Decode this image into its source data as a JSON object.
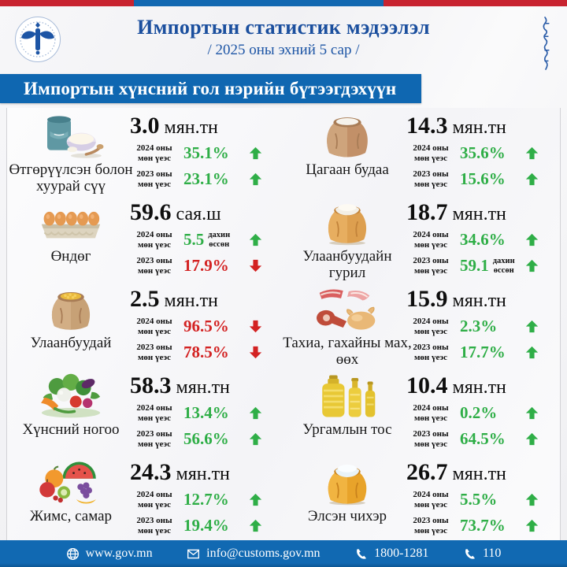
{
  "header": {
    "title": "Импортын статистик мэдээлэл",
    "subtitle": "/ 2025 оны эхний 5 сар /"
  },
  "banner": {
    "label": "Импортын хүнсний гол нэрийн бүтээгдэхүүн"
  },
  "colors": {
    "accent_blue": "#1268b1",
    "accent_red": "#c82330",
    "title_blue": "#1b4f9e",
    "up_green": "#2fae47",
    "down_red": "#d32222"
  },
  "products": [
    {
      "name": "Өтгөрүүлсэн болон хуурай сүү",
      "icon": "milk",
      "value": "3.0",
      "unit": "мян.тн",
      "stats": [
        {
          "period_year": "2024 оны",
          "period_rest": "мөн үеэс",
          "value": "35.1%",
          "suffix": "",
          "direction": "up"
        },
        {
          "period_year": "2023 оны",
          "period_rest": "мөн үеэс",
          "value": "23.1%",
          "suffix": "",
          "direction": "up"
        }
      ]
    },
    {
      "name": "Цагаан будаа",
      "icon": "rice-sack",
      "value": "14.3",
      "unit": "мян.тн",
      "stats": [
        {
          "period_year": "2024 оны",
          "period_rest": "мөн үеэс",
          "value": "35.6%",
          "suffix": "",
          "direction": "up"
        },
        {
          "period_year": "2023 оны",
          "period_rest": "мөн үеэс",
          "value": "15.6%",
          "suffix": "",
          "direction": "up"
        }
      ]
    },
    {
      "name": "Өндөг",
      "icon": "egg-tray",
      "value": "59.6",
      "unit": "сая.ш",
      "stats": [
        {
          "period_year": "2024 оны",
          "period_rest": "мөн үеэс",
          "value": "5.5",
          "suffix": "дахин өссөн",
          "direction": "up"
        },
        {
          "period_year": "2023 оны",
          "period_rest": "мөн үеэс",
          "value": "17.9%",
          "suffix": "",
          "direction": "down"
        }
      ]
    },
    {
      "name": "Улаанбуудайн гурил",
      "icon": "flour-sack",
      "value": "18.7",
      "unit": "мян.тн",
      "stats": [
        {
          "period_year": "2024 оны",
          "period_rest": "мөн үеэс",
          "value": "34.6%",
          "suffix": "",
          "direction": "up"
        },
        {
          "period_year": "2023 оны",
          "period_rest": "мөн үеэс",
          "value": "59.1",
          "suffix": "дахин өссөн",
          "direction": "up"
        }
      ]
    },
    {
      "name": "Улаанбуудай",
      "icon": "wheat-sack",
      "value": "2.5",
      "unit": "мян.тн",
      "stats": [
        {
          "period_year": "2024 оны",
          "period_rest": "мөн үеэс",
          "value": "96.5%",
          "suffix": "",
          "direction": "down"
        },
        {
          "period_year": "2023 оны",
          "period_rest": "мөн үеэс",
          "value": "78.5%",
          "suffix": "",
          "direction": "down"
        }
      ]
    },
    {
      "name": "Тахиа, гахайны мах, өөх",
      "icon": "meat",
      "value": "15.9",
      "unit": "мян.тн",
      "stats": [
        {
          "period_year": "2024 оны",
          "period_rest": "мөн үеэс",
          "value": "2.3%",
          "suffix": "",
          "direction": "up"
        },
        {
          "period_year": "2023 оны",
          "period_rest": "мөн үеэс",
          "value": "17.7%",
          "suffix": "",
          "direction": "up"
        }
      ]
    },
    {
      "name": "Хүнсний ногоо",
      "icon": "vegetables",
      "value": "58.3",
      "unit": "мян.тн",
      "stats": [
        {
          "period_year": "2024 оны",
          "period_rest": "мөн үеэс",
          "value": "13.4%",
          "suffix": "",
          "direction": "up"
        },
        {
          "period_year": "2023 оны",
          "period_rest": "мөн үеэс",
          "value": "56.6%",
          "suffix": "",
          "direction": "up"
        }
      ]
    },
    {
      "name": "Ургамлын тос",
      "icon": "oil-bottles",
      "value": "10.4",
      "unit": "мян.тн",
      "stats": [
        {
          "period_year": "2024 оны",
          "period_rest": "мөн үеэс",
          "value": "0.2%",
          "suffix": "",
          "direction": "up"
        },
        {
          "period_year": "2023 оны",
          "period_rest": "мөн үеэс",
          "value": "64.5%",
          "suffix": "",
          "direction": "up"
        }
      ]
    },
    {
      "name": "Жимс, самар",
      "icon": "fruits",
      "value": "24.3",
      "unit": "мян.тн",
      "stats": [
        {
          "period_year": "2024 оны",
          "period_rest": "мөн үеэс",
          "value": "12.7%",
          "suffix": "",
          "direction": "up"
        },
        {
          "period_year": "2023 оны",
          "period_rest": "мөн үеэс",
          "value": "19.4%",
          "suffix": "",
          "direction": "up"
        }
      ]
    },
    {
      "name": "Элсэн чихэр",
      "icon": "sugar-sack",
      "value": "26.7",
      "unit": "мян.тн",
      "stats": [
        {
          "period_year": "2024 оны",
          "period_rest": "мөн үеэс",
          "value": "5.5%",
          "suffix": "",
          "direction": "up"
        },
        {
          "period_year": "2023 оны",
          "period_rest": "мөн үеэс",
          "value": "73.7%",
          "suffix": "",
          "direction": "up"
        }
      ]
    }
  ],
  "footer": {
    "items": [
      {
        "icon": "globe",
        "label": "www.gov.mn"
      },
      {
        "icon": "envelope",
        "label": "info@customs.gov.mn"
      },
      {
        "icon": "phone",
        "label": "1800-1281"
      },
      {
        "icon": "phone",
        "label": "110"
      }
    ]
  }
}
